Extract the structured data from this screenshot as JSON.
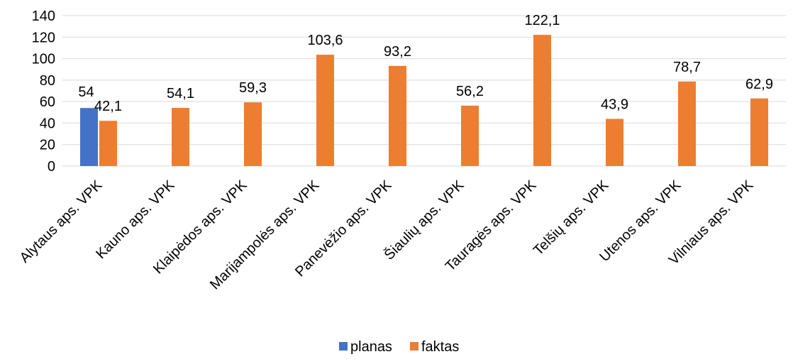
{
  "chart_data": {
    "type": "bar",
    "categories": [
      "Alytaus aps. VPK",
      "Kauno aps. VPK",
      "Klaipėdos aps. VPK",
      "Marijampolės aps. VPK",
      "Panevėžio aps. VPK",
      "Šiaulių aps. VPK",
      "Tauragės aps. VPK",
      "Telšių aps. VPK",
      "Utenos aps. VPK",
      "Vilniaus aps. VPK"
    ],
    "series": [
      {
        "name": "planas",
        "color": "#4472C4",
        "values": [
          54,
          null,
          null,
          null,
          null,
          null,
          null,
          null,
          null,
          null
        ],
        "labels": [
          "54",
          "",
          "",
          "",
          "",
          "",
          "",
          "",
          "",
          ""
        ]
      },
      {
        "name": "faktas",
        "color": "#ED7D31",
        "values": [
          42.1,
          54.1,
          59.3,
          103.6,
          93.2,
          56.2,
          122.1,
          43.9,
          78.7,
          62.9
        ],
        "labels": [
          "42,1",
          "54,1",
          "59,3",
          "103,6",
          "93,2",
          "56,2",
          "122,1",
          "43,9",
          "78,7",
          "62,9"
        ]
      }
    ],
    "ylim": [
      0,
      140
    ],
    "yticks": [
      0,
      20,
      40,
      60,
      80,
      100,
      120,
      140
    ],
    "grid": true,
    "legend_position": "bottom"
  }
}
